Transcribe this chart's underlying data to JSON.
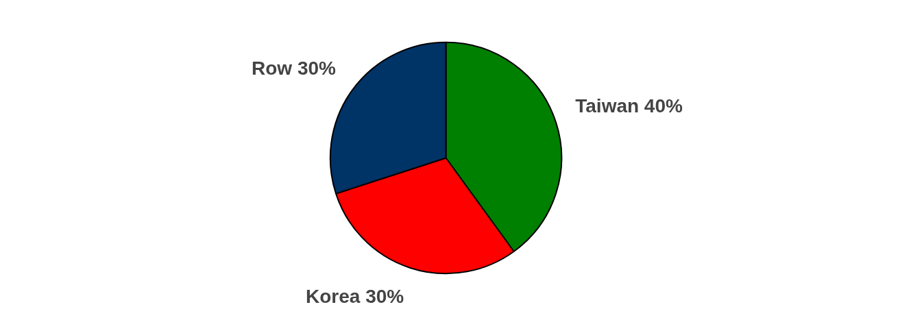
{
  "chart_data": {
    "type": "pie",
    "categories": [
      "Taiwan",
      "Korea",
      "Row"
    ],
    "values": [
      40,
      30,
      30
    ],
    "colors": [
      "#008000",
      "#ff0000",
      "#003366"
    ],
    "value_labels": [
      "40%",
      "30%",
      "30%"
    ]
  }
}
